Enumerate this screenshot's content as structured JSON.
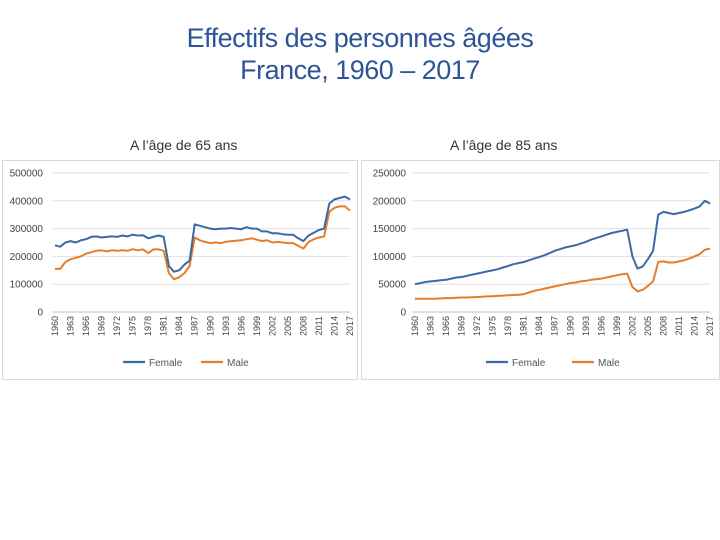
{
  "title": {
    "line1": "Effectifs des personnes âgées",
    "line2": "France, 1960 – 2017"
  },
  "colors": {
    "title": "#2e5597",
    "female": "#3a6aa6",
    "male": "#e57e2b",
    "grid": "#e0e0e0"
  },
  "chart_data": [
    {
      "type": "line",
      "subtitle": "A l’âge de 65 ans",
      "ylim": [
        0,
        500000
      ],
      "yticks": [
        0,
        100000,
        200000,
        300000,
        400000,
        500000
      ],
      "xtick_labels": [
        "1960",
        "1963",
        "1966",
        "1969",
        "1972",
        "1975",
        "1978",
        "1981",
        "1984",
        "1987",
        "1990",
        "1993",
        "1996",
        "1999",
        "2002",
        "2005",
        "2008",
        "2011",
        "2014",
        "2017"
      ],
      "x": [
        1960,
        1961,
        1962,
        1963,
        1964,
        1965,
        1966,
        1967,
        1968,
        1969,
        1970,
        1971,
        1972,
        1973,
        1974,
        1975,
        1976,
        1977,
        1978,
        1979,
        1980,
        1981,
        1982,
        1983,
        1984,
        1985,
        1986,
        1987,
        1988,
        1989,
        1990,
        1991,
        1992,
        1993,
        1994,
        1995,
        1996,
        1997,
        1998,
        1999,
        2000,
        2001,
        2002,
        2003,
        2004,
        2005,
        2006,
        2007,
        2008,
        2009,
        2010,
        2011,
        2012,
        2013,
        2014,
        2015,
        2016,
        2017
      ],
      "series": [
        {
          "name": "Female",
          "values": [
            240000,
            235000,
            250000,
            255000,
            250000,
            258000,
            262000,
            270000,
            272000,
            268000,
            270000,
            272000,
            270000,
            275000,
            272000,
            278000,
            275000,
            276000,
            265000,
            270000,
            275000,
            270000,
            165000,
            145000,
            150000,
            170000,
            185000,
            315000,
            310000,
            305000,
            300000,
            298000,
            300000,
            300000,
            302000,
            300000,
            298000,
            305000,
            300000,
            300000,
            290000,
            290000,
            283000,
            283000,
            280000,
            278000,
            278000,
            265000,
            255000,
            275000,
            285000,
            295000,
            300000,
            390000,
            405000,
            410000,
            415000,
            405000
          ]
        },
        {
          "name": "Male",
          "values": [
            155000,
            155000,
            180000,
            190000,
            195000,
            200000,
            210000,
            215000,
            220000,
            222000,
            218000,
            222000,
            220000,
            222000,
            220000,
            226000,
            222000,
            225000,
            212000,
            225000,
            225000,
            220000,
            140000,
            118000,
            125000,
            140000,
            165000,
            268000,
            258000,
            252000,
            248000,
            250000,
            248000,
            252000,
            255000,
            256000,
            258000,
            262000,
            265000,
            260000,
            255000,
            258000,
            250000,
            252000,
            250000,
            248000,
            248000,
            238000,
            228000,
            252000,
            262000,
            268000,
            272000,
            360000,
            375000,
            380000,
            380000,
            365000
          ]
        }
      ]
    },
    {
      "type": "line",
      "subtitle": "A l’âge de 85 ans",
      "ylim": [
        0,
        250000
      ],
      "yticks": [
        0,
        50000,
        100000,
        150000,
        200000,
        250000
      ],
      "xtick_labels": [
        "1960",
        "1963",
        "1966",
        "1969",
        "1972",
        "1975",
        "1978",
        "1981",
        "1984",
        "1987",
        "1990",
        "1993",
        "1996",
        "1999",
        "2002",
        "2005",
        "2008",
        "2011",
        "2014",
        "2017"
      ],
      "x": [
        1960,
        1961,
        1962,
        1963,
        1964,
        1965,
        1966,
        1967,
        1968,
        1969,
        1970,
        1971,
        1972,
        1973,
        1974,
        1975,
        1976,
        1977,
        1978,
        1979,
        1980,
        1981,
        1982,
        1983,
        1984,
        1985,
        1986,
        1987,
        1988,
        1989,
        1990,
        1991,
        1992,
        1993,
        1994,
        1995,
        1996,
        1997,
        1998,
        1999,
        2000,
        2001,
        2002,
        2003,
        2004,
        2005,
        2006,
        2007,
        2008,
        2009,
        2010,
        2011,
        2012,
        2013,
        2014,
        2015,
        2016,
        2017
      ],
      "series": [
        {
          "name": "Female",
          "values": [
            50000,
            52000,
            54000,
            55000,
            56000,
            57000,
            58000,
            60000,
            62000,
            63000,
            65000,
            67000,
            69000,
            71000,
            73000,
            75000,
            77000,
            80000,
            83000,
            86000,
            88000,
            90000,
            93000,
            96000,
            99000,
            102000,
            106000,
            110000,
            113000,
            116000,
            118000,
            120000,
            123000,
            126000,
            130000,
            133000,
            136000,
            139000,
            142000,
            144000,
            146000,
            148000,
            100000,
            78000,
            82000,
            95000,
            110000,
            175000,
            180000,
            178000,
            176000,
            178000,
            180000,
            183000,
            186000,
            190000,
            200000,
            195000
          ]
        },
        {
          "name": "Male",
          "values": [
            24000,
            24000,
            24000,
            24000,
            24000,
            24500,
            25000,
            25000,
            25500,
            26000,
            26000,
            26500,
            27000,
            27500,
            28000,
            28500,
            29000,
            29500,
            30000,
            30500,
            31000,
            32000,
            35000,
            38000,
            40000,
            42000,
            44000,
            46000,
            48000,
            50000,
            52000,
            53000,
            55000,
            56000,
            58000,
            59000,
            60000,
            62000,
            64000,
            66000,
            68000,
            69000,
            45000,
            37000,
            40000,
            47000,
            55000,
            90000,
            91000,
            89000,
            89000,
            91000,
            93000,
            96000,
            100000,
            104000,
            112000,
            114000
          ]
        }
      ]
    }
  ]
}
